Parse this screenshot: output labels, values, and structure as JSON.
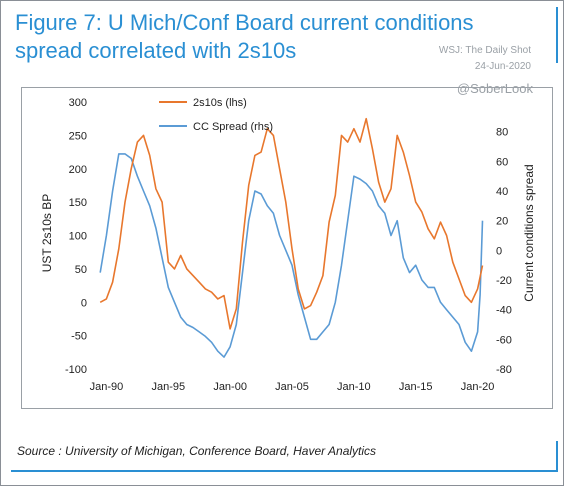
{
  "header": {
    "title": "Figure 7: U Mich/Conf Board current conditions spread correlated with 2s10s",
    "watermark_source": "WSJ: The Daily Shot",
    "watermark_date": "24-Jun-2020",
    "watermark_handle": "@SoberLook"
  },
  "footer": {
    "source": "Source : University of Michigan, Conference Board, Haver Analytics"
  },
  "chart_data": {
    "type": "line",
    "title": "",
    "xlabel": "",
    "ylabel_left": "UST 2s10s BP",
    "ylabel_right": "Current conditions spread",
    "x_tick_labels": [
      "Jan-90",
      "Jan-95",
      "Jan-00",
      "Jan-05",
      "Jan-10",
      "Jan-15",
      "Jan-20"
    ],
    "x_range": [
      1989.4,
      2020.6
    ],
    "y_left_range": [
      -100,
      300
    ],
    "y_left_ticks": [
      -100,
      -50,
      0,
      50,
      100,
      150,
      200,
      250,
      300
    ],
    "y_right_range": [
      -80,
      100
    ],
    "y_right_ticks": [
      -80,
      -60,
      -40,
      -20,
      0,
      20,
      40,
      60,
      80
    ],
    "legend_position": "top-center",
    "grid": false,
    "series": [
      {
        "name": "2s10s (lhs)",
        "axis": "left",
        "color": "#e8772d",
        "x": [
          1989.5,
          1990.0,
          1990.5,
          1991.0,
          1991.5,
          1992.0,
          1992.5,
          1993.0,
          1993.5,
          1994.0,
          1994.5,
          1995.0,
          1995.5,
          1996.0,
          1996.5,
          1997.0,
          1997.5,
          1998.0,
          1998.5,
          1999.0,
          1999.5,
          2000.0,
          2000.5,
          2001.0,
          2001.5,
          2002.0,
          2002.5,
          2003.0,
          2003.5,
          2004.0,
          2004.5,
          2005.0,
          2005.5,
          2006.0,
          2006.5,
          2007.0,
          2007.5,
          2008.0,
          2008.5,
          2009.0,
          2009.5,
          2010.0,
          2010.5,
          2011.0,
          2011.5,
          2012.0,
          2012.5,
          2013.0,
          2013.5,
          2014.0,
          2014.5,
          2015.0,
          2015.5,
          2016.0,
          2016.5,
          2017.0,
          2017.5,
          2018.0,
          2018.5,
          2019.0,
          2019.5,
          2020.0,
          2020.4
        ],
        "values": [
          0,
          5,
          30,
          80,
          150,
          200,
          240,
          250,
          220,
          170,
          150,
          60,
          50,
          70,
          50,
          40,
          30,
          20,
          15,
          5,
          10,
          -40,
          -10,
          90,
          175,
          220,
          225,
          260,
          250,
          200,
          150,
          80,
          20,
          -10,
          -5,
          15,
          40,
          120,
          160,
          250,
          240,
          260,
          240,
          275,
          230,
          180,
          150,
          170,
          250,
          225,
          190,
          150,
          135,
          110,
          95,
          120,
          100,
          60,
          35,
          10,
          0,
          20,
          55
        ]
      },
      {
        "name": "CC Spread (rhs)",
        "axis": "right",
        "color": "#5b9bd5",
        "x": [
          1989.5,
          1990.0,
          1990.5,
          1991.0,
          1991.5,
          1992.0,
          1992.5,
          1993.0,
          1993.5,
          1994.0,
          1994.5,
          1995.0,
          1995.5,
          1996.0,
          1996.5,
          1997.0,
          1997.5,
          1998.0,
          1998.5,
          1999.0,
          1999.5,
          2000.0,
          2000.5,
          2001.0,
          2001.5,
          2002.0,
          2002.5,
          2003.0,
          2003.5,
          2004.0,
          2004.5,
          2005.0,
          2005.5,
          2006.0,
          2006.5,
          2007.0,
          2007.5,
          2008.0,
          2008.5,
          2009.0,
          2009.5,
          2010.0,
          2010.5,
          2011.0,
          2011.5,
          2012.0,
          2012.5,
          2013.0,
          2013.5,
          2014.0,
          2014.5,
          2015.0,
          2015.5,
          2016.0,
          2016.5,
          2017.0,
          2017.5,
          2018.0,
          2018.5,
          2019.0,
          2019.5,
          2020.0,
          2020.2,
          2020.4
        ],
        "values": [
          -15,
          10,
          40,
          65,
          65,
          62,
          50,
          40,
          30,
          15,
          -5,
          -25,
          -35,
          -45,
          -50,
          -52,
          -55,
          -58,
          -62,
          -68,
          -72,
          -65,
          -50,
          -15,
          20,
          40,
          38,
          30,
          25,
          10,
          0,
          -10,
          -30,
          -45,
          -60,
          -60,
          -55,
          -50,
          -35,
          -10,
          20,
          50,
          48,
          45,
          40,
          30,
          25,
          10,
          20,
          -5,
          -15,
          -10,
          -20,
          -25,
          -25,
          -35,
          -40,
          -45,
          -50,
          -62,
          -68,
          -55,
          -30,
          20
        ]
      }
    ]
  }
}
